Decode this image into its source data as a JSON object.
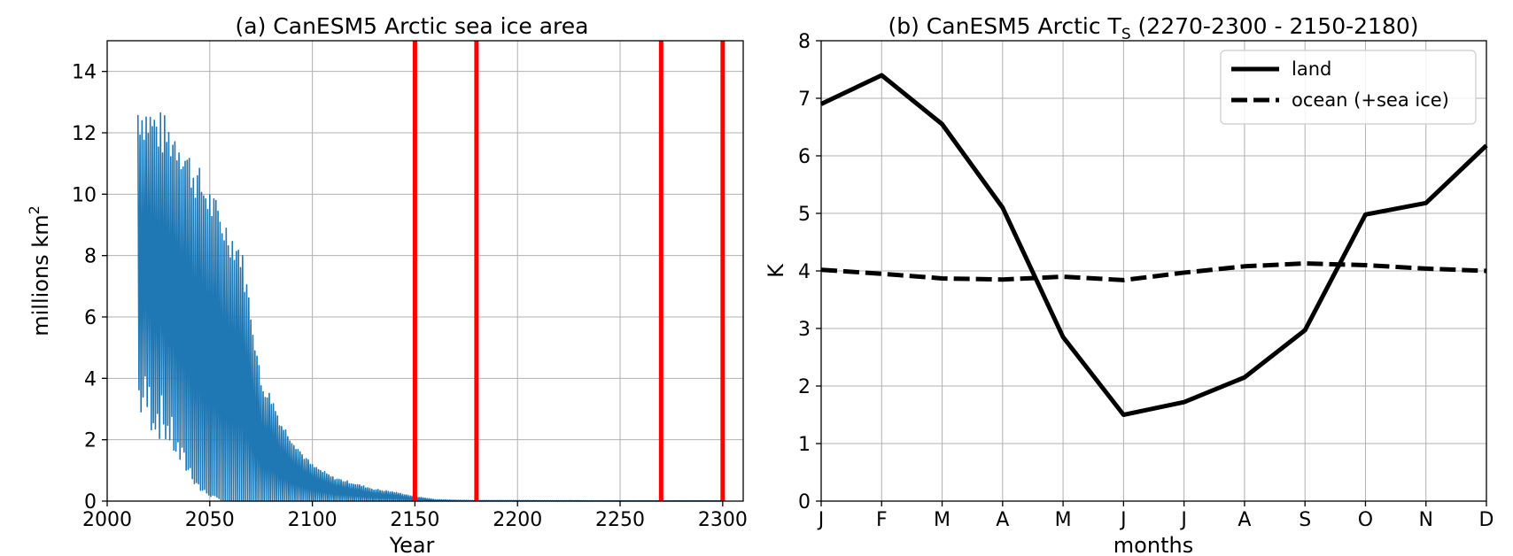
{
  "chart_data": [
    {
      "type": "line",
      "title": "(a) CanESM5 Arctic sea ice area",
      "xlabel": "Year",
      "ylabel_main": "millions km",
      "ylabel_sup": "2",
      "xlim": [
        2000,
        2310
      ],
      "ylim": [
        0,
        15
      ],
      "xticks": [
        2000,
        2050,
        2100,
        2150,
        2200,
        2250,
        2300
      ],
      "yticks": [
        0,
        2,
        4,
        6,
        8,
        10,
        12,
        14
      ],
      "grid": true,
      "series_color": "#1f77b4",
      "vline_color": "#ff0000",
      "vlines": [
        2150,
        2180,
        2270,
        2300
      ],
      "envelope": {
        "years": [
          2015,
          2020,
          2025,
          2030,
          2035,
          2040,
          2045,
          2050,
          2055,
          2060,
          2065,
          2070,
          2075,
          2080,
          2085,
          2090,
          2095,
          2100,
          2110,
          2120,
          2130,
          2140,
          2150,
          2160,
          2170,
          2180,
          2200,
          2250,
          2300
        ],
        "max": [
          13.4,
          13.1,
          12.8,
          12.5,
          12.3,
          11.5,
          10.9,
          10.3,
          9.6,
          9.0,
          8.5,
          6.5,
          4.0,
          3.5,
          2.6,
          2.1,
          1.6,
          1.2,
          0.8,
          0.6,
          0.4,
          0.3,
          0.15,
          0.05,
          0.03,
          0.02,
          0.02,
          0.01,
          0.01
        ],
        "min": [
          3.5,
          3.2,
          2.8,
          2.3,
          1.5,
          1.0,
          0.4,
          0.2,
          0.05,
          0.0,
          0.0,
          0.0,
          0.0,
          0.0,
          0.0,
          0.0,
          0.0,
          0.0,
          0.0,
          0.0,
          0.0,
          0.0,
          0.0,
          0.0,
          0.0,
          0.0,
          0.0,
          0.0,
          0.0
        ]
      }
    },
    {
      "type": "line",
      "title_pre": "(b) CanESM5 Arctic T",
      "title_sub": "S",
      "title_post": " (2270-2300 - 2150-2180)",
      "xlabel": "months",
      "ylabel": "K",
      "ylim": [
        0,
        8
      ],
      "yticks": [
        0,
        1,
        2,
        3,
        4,
        5,
        6,
        7,
        8
      ],
      "categories": [
        "J",
        "F",
        "M",
        "A",
        "M",
        "J",
        "J",
        "A",
        "S",
        "O",
        "N",
        "D"
      ],
      "grid": true,
      "legend_position": "top-right",
      "series": [
        {
          "name": "land",
          "style": "solid",
          "color": "#000000",
          "values": [
            6.9,
            7.4,
            6.55,
            5.1,
            2.85,
            1.5,
            1.72,
            2.15,
            2.97,
            4.98,
            5.18,
            6.18
          ]
        },
        {
          "name": "ocean (+sea ice)",
          "style": "dashed",
          "color": "#000000",
          "values": [
            4.02,
            3.95,
            3.87,
            3.85,
            3.9,
            3.84,
            3.97,
            4.08,
            4.13,
            4.1,
            4.04,
            4.0
          ]
        }
      ]
    }
  ]
}
